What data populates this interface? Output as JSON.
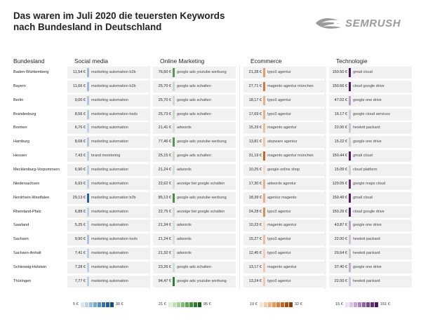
{
  "title_line1": "Das waren im Juli 2020 die teuersten Keywords",
  "title_line2": "nach Bundesland in Deutschland",
  "logo_text": "SEMRUSH",
  "chart_data": {
    "type": "table",
    "row_header": "Bundesland",
    "columns": [
      {
        "name": "Social media",
        "color": "#1f5f9e",
        "min_label": "5 €",
        "max_label": "30 €",
        "min": 5,
        "max": 30,
        "legend_colors": [
          "#d6e6f5",
          "#b8d3ec",
          "#97bfe2",
          "#74a8d6",
          "#4f8ec7",
          "#2e74b5",
          "#1f5f9e",
          "#134a80"
        ]
      },
      {
        "name": "Online Marketing",
        "color": "#2f7d2f",
        "min_label": "21 €",
        "max_label": "95 €",
        "min": 21,
        "max": 95,
        "legend_colors": [
          "#dcefd7",
          "#bfe2b6",
          "#9fd293",
          "#7dbf6f",
          "#5aa94e",
          "#3f9138",
          "#2f7d2f",
          "#1e5e1f"
        ]
      },
      {
        "name": "Ecommerce",
        "color": "#c8641b",
        "min_label": "10 €",
        "max_label": "32 €",
        "min": 10,
        "max": 32,
        "legend_colors": [
          "#fbe3cf",
          "#f7cba6",
          "#f2b07c",
          "#ec9555",
          "#e07b35",
          "#c8641b",
          "#a84f12",
          "#833c0c"
        ]
      },
      {
        "name": "Technologie",
        "color": "#4b1a5e",
        "min_label": "15 €",
        "max_label": "151 €",
        "min": 15,
        "max": 151,
        "legend_colors": [
          "#ecdff1",
          "#dbc4e3",
          "#c6a3d3",
          "#ad80bf",
          "#9361a8",
          "#7a4590",
          "#612e77",
          "#4b1a5e"
        ]
      }
    ],
    "rows": [
      {
        "state": "Baden-Württemberg",
        "cells": [
          {
            "value": 11.54,
            "label": "11,54 €",
            "keyword": "marketing automation b2b"
          },
          {
            "value": 76.6,
            "label": "76,60 €",
            "keyword": "google ads youtube werbung"
          },
          {
            "value": 21.28,
            "label": "21,28 €",
            "keyword": "typo3 agentur"
          },
          {
            "value": 150.5,
            "label": "150.50 €",
            "keyword": "gmail cloud"
          }
        ]
      },
      {
        "state": "Bayern",
        "cells": [
          {
            "value": 11.66,
            "label": "11,66 €",
            "keyword": "marketing automation b2b"
          },
          {
            "value": 25.7,
            "label": "25,70 €",
            "keyword": "google ads schalten"
          },
          {
            "value": 27.71,
            "label": "27,71 €",
            "keyword": "magento agentur münchen"
          },
          {
            "value": 150.66,
            "label": "150.66 €",
            "keyword": "cloud google drive"
          }
        ]
      },
      {
        "state": "Berlin",
        "cells": [
          {
            "value": 9.0,
            "label": "9,00 €",
            "keyword": "marketing automation"
          },
          {
            "value": 25.7,
            "label": "25,70 €",
            "keyword": "google ads schalten"
          },
          {
            "value": 18.17,
            "label": "18,17 €",
            "keyword": "typo3 agentur"
          },
          {
            "value": 47.02,
            "label": "47.02 €",
            "keyword": "google one drive"
          }
        ]
      },
      {
        "state": "Brandenburg",
        "cells": [
          {
            "value": 8.56,
            "label": "8,56 €",
            "keyword": "marketing automation tools"
          },
          {
            "value": 25.73,
            "label": "25,73 €",
            "keyword": "google ads schalten"
          },
          {
            "value": 17.69,
            "label": "17,69 €",
            "keyword": "typo3 agentur"
          },
          {
            "value": 16.17,
            "label": "16.17 €",
            "keyword": "google cloud services"
          }
        ]
      },
      {
        "state": "Bremen",
        "cells": [
          {
            "value": 6.76,
            "label": "6,76 €",
            "keyword": "marketing automation"
          },
          {
            "value": 21.41,
            "label": "21,41 €",
            "keyword": "adwords"
          },
          {
            "value": 15.29,
            "label": "15,29 €",
            "keyword": "magento agentur"
          },
          {
            "value": 22.0,
            "label": "22.00 €",
            "keyword": "hewlett packard"
          }
        ]
      },
      {
        "state": "Hamburg",
        "cells": [
          {
            "value": 8.68,
            "label": "8,68 €",
            "keyword": "marketing automation"
          },
          {
            "value": 77.46,
            "label": "77,46 €",
            "keyword": "google ads youtube werbung"
          },
          {
            "value": 13.81,
            "label": "13,81 €",
            "keyword": "stopware agentur"
          },
          {
            "value": 15.22,
            "label": "15.22 €",
            "keyword": "google one drive"
          }
        ]
      },
      {
        "state": "Hessen",
        "cells": [
          {
            "value": 7.43,
            "label": "7,43 €",
            "keyword": "brand monitoring"
          },
          {
            "value": 25.15,
            "label": "25,15 €",
            "keyword": "google ads schalten"
          },
          {
            "value": 31.19,
            "label": "31,19 €",
            "keyword": "magento agentur münchen"
          },
          {
            "value": 150.44,
            "label": "150.44 €",
            "keyword": "gmail cloud"
          }
        ]
      },
      {
        "state": "Mecklenburg-Vorpommern",
        "cells": [
          {
            "value": 6.9,
            "label": "6,90 €",
            "keyword": "marketing automation"
          },
          {
            "value": 21.24,
            "label": "21,24 €",
            "keyword": "adwords"
          },
          {
            "value": 10.25,
            "label": "10,25 €",
            "keyword": "google online shop"
          },
          {
            "value": 15.09,
            "label": "15.09 €",
            "keyword": "cloud platform"
          }
        ]
      },
      {
        "state": "Niedersachsen",
        "cells": [
          {
            "value": 6.93,
            "label": "6,93 €",
            "keyword": "marketing automation"
          },
          {
            "value": 22.62,
            "label": "22,62 €",
            "keyword": "anzeige bei google schalten"
          },
          {
            "value": 17.3,
            "label": "17,30 €",
            "keyword": "adwords agentur"
          },
          {
            "value": 129.05,
            "label": "129.05 €",
            "keyword": "google maps cloud"
          }
        ]
      },
      {
        "state": "Nordrhein-Westfalen",
        "cells": [
          {
            "value": 29.13,
            "label": "29,13 €",
            "keyword": "marketing automation b2b"
          },
          {
            "value": 85.13,
            "label": "85,13 €",
            "keyword": "google ads youtube werbung"
          },
          {
            "value": 18.39,
            "label": "18,39 €",
            "keyword": "agentur magento"
          },
          {
            "value": 150.49,
            "label": "150.49 €",
            "keyword": "gmail cloud"
          }
        ]
      },
      {
        "state": "Rheinland-Pfalz",
        "cells": [
          {
            "value": 6.88,
            "label": "6,88 €",
            "keyword": "marketing automation"
          },
          {
            "value": 22.75,
            "label": "22,75 €",
            "keyword": "anzeige bei google schalten"
          },
          {
            "value": 24.28,
            "label": "24,28 €",
            "keyword": "typo3 agentur"
          },
          {
            "value": 150.26,
            "label": "150.26 €",
            "keyword": "cloud google drive"
          }
        ]
      },
      {
        "state": "Saarland",
        "cells": [
          {
            "value": 5.25,
            "label": "5,25 €",
            "keyword": "marketing automation"
          },
          {
            "value": 21.34,
            "label": "21,34 €",
            "keyword": "adwords"
          },
          {
            "value": 10.23,
            "label": "10,23 €",
            "keyword": "magento agentur"
          },
          {
            "value": 43.87,
            "label": "43.87 €",
            "keyword": "google one drive"
          }
        ]
      },
      {
        "state": "Sachsen",
        "cells": [
          {
            "value": 9.9,
            "label": "9,90 €",
            "keyword": "marketing automation tools"
          },
          {
            "value": 21.24,
            "label": "21,24 €",
            "keyword": "adwords"
          },
          {
            "value": 15.27,
            "label": "15,27 €",
            "keyword": "typo3 agentur"
          },
          {
            "value": 22.0,
            "label": "22.00 €",
            "keyword": "hewlett packard"
          }
        ]
      },
      {
        "state": "Sachsen-Anhalt",
        "cells": [
          {
            "value": 7.41,
            "label": "7,41 €",
            "keyword": "marketing automation"
          },
          {
            "value": 21.32,
            "label": "21,32 €",
            "keyword": "adwords"
          },
          {
            "value": 12.45,
            "label": "12,45 €",
            "keyword": "typo3 agentur"
          },
          {
            "value": 20.64,
            "label": "20.64 €",
            "keyword": "hewlett packard"
          }
        ]
      },
      {
        "state": "Schleswig-Holstein",
        "cells": [
          {
            "value": 7.28,
            "label": "7,28 €",
            "keyword": "marketing automation"
          },
          {
            "value": 23.26,
            "label": "23,26 €",
            "keyword": "google ads schalten"
          },
          {
            "value": 13.17,
            "label": "13,17 €",
            "keyword": "magento agentur"
          },
          {
            "value": 37.4,
            "label": "37.40 €",
            "keyword": "google one drive"
          }
        ]
      },
      {
        "state": "Thüringen",
        "cells": [
          {
            "value": 7.77,
            "label": "7,77 €",
            "keyword": "marketing automation"
          },
          {
            "value": 94.47,
            "label": "94,47 €",
            "keyword": "google ads youtube werbung"
          },
          {
            "value": 13.24,
            "label": "13,24 €",
            "keyword": "typo3 agentur"
          },
          {
            "value": 22.0,
            "label": "22.00 €",
            "keyword": "hewlett packard"
          }
        ]
      }
    ]
  }
}
